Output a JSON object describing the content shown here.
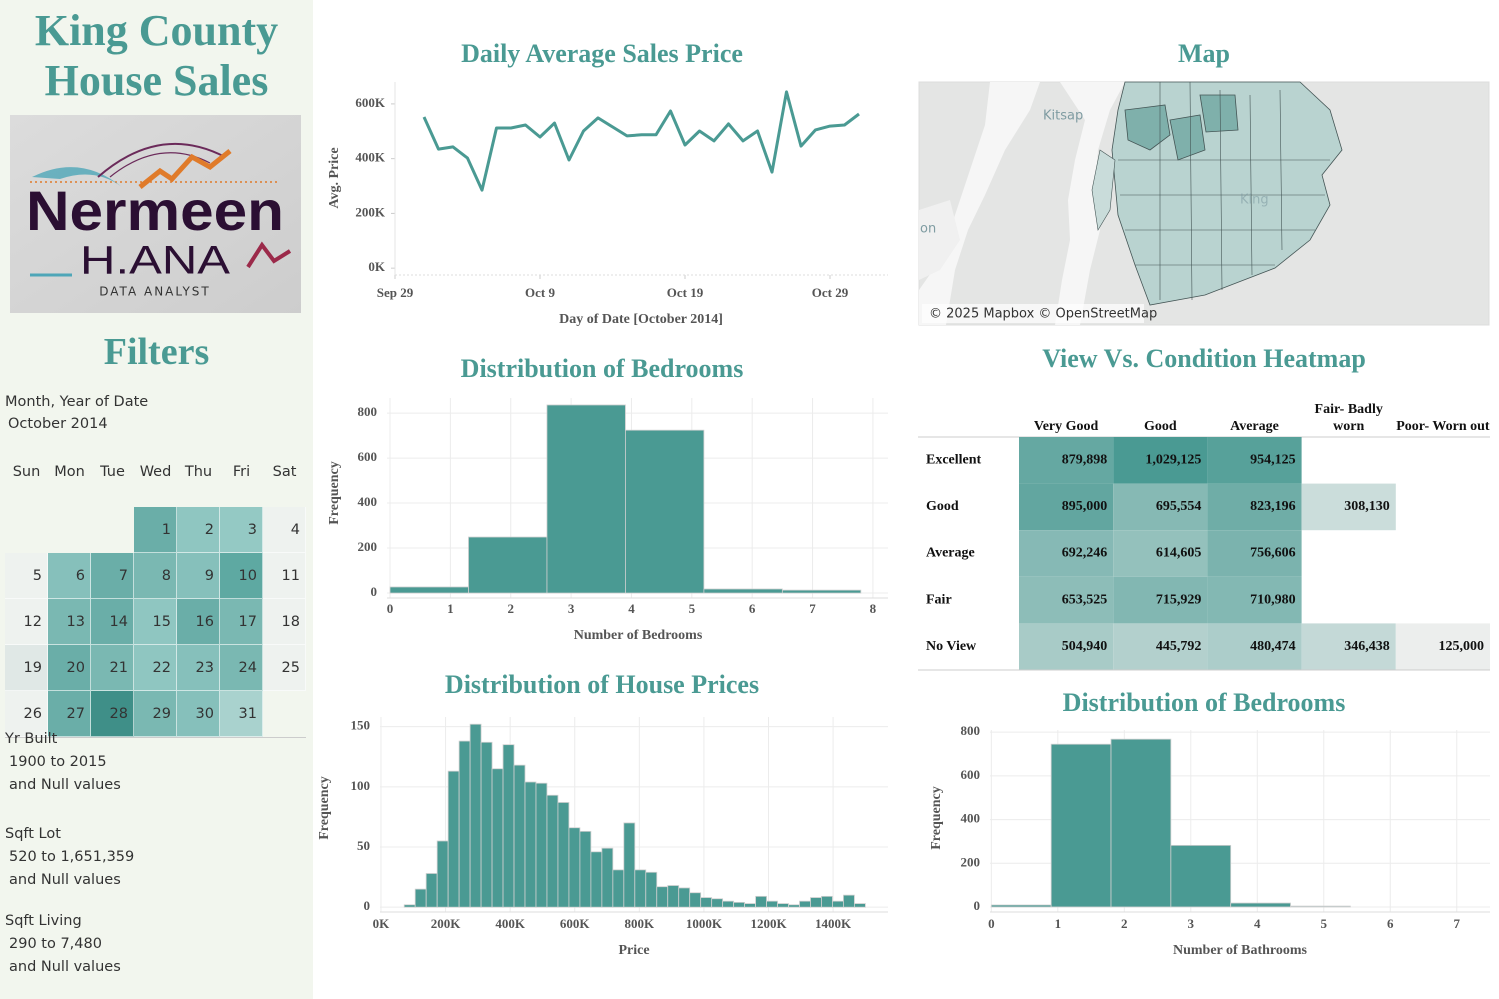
{
  "sidebar": {
    "title": "King County House Sales",
    "logo": {
      "name": "Nermeen",
      "surname": "H.ANA",
      "tagline": "DATA ANALYST"
    },
    "filters_title": "Filters",
    "date_filter": {
      "label": "Month, Year of Date",
      "value": "October 2014"
    },
    "calendar": {
      "weekdays": [
        "Sun",
        "Mon",
        "Tue",
        "Wed",
        "Thu",
        "Fri",
        "Sat"
      ],
      "weeks": [
        [
          null,
          null,
          null,
          {
            "day": 1,
            "color": "#6aaea8"
          },
          {
            "day": 2,
            "color": "#8fc6c1"
          },
          {
            "day": 3,
            "color": "#94c9c4"
          },
          {
            "day": 4,
            "color": "#eef2ef"
          }
        ],
        [
          {
            "day": 5,
            "color": "#eef2ef"
          },
          {
            "day": 6,
            "color": "#86c0bb"
          },
          {
            "day": 7,
            "color": "#6aaea8"
          },
          {
            "day": 8,
            "color": "#7ab8b2"
          },
          {
            "day": 9,
            "color": "#86c0bb"
          },
          {
            "day": 10,
            "color": "#5ea9a2"
          },
          {
            "day": 11,
            "color": "#eef2ef"
          }
        ],
        [
          {
            "day": 12,
            "color": "#eef2ef"
          },
          {
            "day": 13,
            "color": "#7ab8b2"
          },
          {
            "day": 14,
            "color": "#6aaea8"
          },
          {
            "day": 15,
            "color": "#8fc6c1"
          },
          {
            "day": 16,
            "color": "#6aaea8"
          },
          {
            "day": 17,
            "color": "#7ab8b2"
          },
          {
            "day": 18,
            "color": "#eef2ef"
          }
        ],
        [
          {
            "day": 19,
            "color": "#e0e8e6"
          },
          {
            "day": 20,
            "color": "#6aaea8"
          },
          {
            "day": 21,
            "color": "#7ab8b2"
          },
          {
            "day": 22,
            "color": "#8fc6c1"
          },
          {
            "day": 23,
            "color": "#86c0bb"
          },
          {
            "day": 24,
            "color": "#7ab8b2"
          },
          {
            "day": 25,
            "color": "#eef2ef"
          }
        ],
        [
          {
            "day": 26,
            "color": "#eef2ef"
          },
          {
            "day": 27,
            "color": "#6aaea8"
          },
          {
            "day": 28,
            "color": "#3f8f88"
          },
          {
            "day": 29,
            "color": "#7ab8b2"
          },
          {
            "day": 30,
            "color": "#86c0bb"
          },
          {
            "day": 31,
            "color": "#a9d2ce"
          },
          null
        ]
      ]
    },
    "range_filters": [
      {
        "label": "Yr Built",
        "range": "1900 to 2015",
        "note": "and Null values"
      },
      {
        "label": "Sqft Lot",
        "range": "520 to 1,651,359",
        "note": "and Null values"
      },
      {
        "label": "Sqft Living",
        "range": "290 to 7,480",
        "note": "and Null values"
      }
    ]
  },
  "map": {
    "title": "Map",
    "labels": [
      "Kitsap",
      "King",
      "on"
    ],
    "credit": "© 2025 Mapbox © OpenStreetMap"
  },
  "chart_data": [
    {
      "type": "line",
      "title": "Daily Average Sales Price",
      "x_label": "Day of Date [October 2014]",
      "y_label": "Avg. Price",
      "x": [
        "2014-10-01",
        "2014-10-02",
        "2014-10-03",
        "2014-10-04",
        "2014-10-05",
        "2014-10-06",
        "2014-10-07",
        "2014-10-08",
        "2014-10-09",
        "2014-10-10",
        "2014-10-11",
        "2014-10-12",
        "2014-10-13",
        "2014-10-14",
        "2014-10-15",
        "2014-10-16",
        "2014-10-17",
        "2014-10-18",
        "2014-10-19",
        "2014-10-20",
        "2014-10-21",
        "2014-10-22",
        "2014-10-23",
        "2014-10-24",
        "2014-10-25",
        "2014-10-26",
        "2014-10-27",
        "2014-10-28",
        "2014-10-29",
        "2014-10-30",
        "2014-10-31"
      ],
      "values": [
        552000,
        435000,
        443000,
        402000,
        285000,
        512000,
        512000,
        523000,
        479000,
        530000,
        395000,
        501000,
        549000,
        516000,
        483000,
        487000,
        487000,
        574000,
        450000,
        501000,
        465000,
        527000,
        465000,
        501000,
        351000,
        644000,
        446000,
        505000,
        519000,
        523000,
        563000
      ],
      "color": "#4a9a93",
      "xlim": [
        "2014-09-29",
        "2014-11-02"
      ],
      "xticks": [
        {
          "value": "2014-09-29",
          "label": "Sep 29"
        },
        {
          "value": "2014-10-09",
          "label": "Oct 9"
        },
        {
          "value": "2014-10-19",
          "label": "Oct 19"
        },
        {
          "value": "2014-10-29",
          "label": "Oct 29"
        }
      ],
      "ylim": [
        -25000,
        680000
      ],
      "yticks": [
        {
          "value": 0,
          "label": "0K"
        },
        {
          "value": 200000,
          "label": "200K"
        },
        {
          "value": 400000,
          "label": "400K"
        },
        {
          "value": 600000,
          "label": "600K"
        }
      ],
      "grid": false
    },
    {
      "type": "histogram",
      "title": "Distribution of Bedrooms",
      "x_label": "Number of Bedrooms",
      "y_label": "Frequency",
      "bins": [
        0,
        1.3,
        2.6,
        3.9,
        5.2,
        6.5,
        7.8
      ],
      "values": [
        27,
        249,
        836,
        724,
        18,
        13
      ],
      "color": "#4a9a93",
      "xlim": [
        -0.05,
        8.25
      ],
      "xticks": [
        0,
        1,
        2,
        3,
        4,
        5,
        6,
        7,
        8
      ],
      "ylim": [
        -22,
        867
      ],
      "yticks": [
        0,
        200,
        400,
        600,
        800
      ],
      "grid": true
    },
    {
      "type": "histogram",
      "title": "Distribution of House Prices",
      "x_label": "Price",
      "y_label": "Frequency",
      "bins": [
        72000,
        106000,
        140000,
        174000,
        208000,
        242000,
        276000,
        310000,
        344000,
        378000,
        412000,
        446000,
        480000,
        514000,
        548000,
        582000,
        616000,
        650000,
        684000,
        718000,
        752000,
        786000,
        820000,
        854000,
        888000,
        922000,
        956000,
        990000,
        1024000,
        1058000,
        1092000,
        1126000,
        1160000,
        1194000,
        1228000,
        1262000,
        1296000,
        1330000,
        1364000,
        1398000,
        1432000,
        1466000,
        1500000
      ],
      "values": [
        2,
        15,
        28,
        55,
        113,
        138,
        152,
        137,
        115,
        135,
        118,
        104,
        103,
        93,
        87,
        66,
        63,
        46,
        49,
        31,
        70,
        31,
        29,
        17,
        18,
        16,
        12,
        8,
        7,
        5,
        4,
        3,
        9,
        5,
        3,
        2,
        5,
        8,
        9,
        5,
        10,
        3
      ],
      "color": "#4a9a93",
      "xlim": [
        -3000,
        1570000
      ],
      "xticks": [
        {
          "value": 0,
          "label": "0K"
        },
        {
          "value": 200000,
          "label": "200K"
        },
        {
          "value": 400000,
          "label": "400K"
        },
        {
          "value": 600000,
          "label": "600K"
        },
        {
          "value": 800000,
          "label": "800K"
        },
        {
          "value": 1000000,
          "label": "1000K"
        },
        {
          "value": 1200000,
          "label": "1200K"
        },
        {
          "value": 1400000,
          "label": "1400K"
        }
      ],
      "ylim": [
        -4,
        158
      ],
      "yticks": [
        0,
        50,
        100,
        150
      ],
      "grid": true
    },
    {
      "type": "heatmap",
      "title": "View Vs. Condition Heatmap",
      "columns": [
        "Very Good",
        "Good",
        "Average",
        "Fair- Badly worn",
        "Poor- Worn out"
      ],
      "rows": [
        "Excellent",
        "Good",
        "Average",
        "Fair",
        "No View"
      ],
      "values": [
        [
          879898,
          1029125,
          954125,
          null,
          null
        ],
        [
          895000,
          695554,
          823196,
          308130,
          null
        ],
        [
          692246,
          614605,
          756606,
          null,
          null
        ],
        [
          653525,
          715929,
          710980,
          null,
          null
        ],
        [
          504940,
          445792,
          480474,
          346438,
          125000
        ]
      ],
      "value_labels": [
        [
          "879,898",
          "1,029,125",
          "954,125",
          null,
          null
        ],
        [
          "895,000",
          "695,554",
          "823,196",
          "308,130",
          null
        ],
        [
          "692,246",
          "614,605",
          "756,606",
          null,
          null
        ],
        [
          "653,525",
          "715,929",
          "710,980",
          null,
          null
        ],
        [
          "504,940",
          "445,792",
          "480,474",
          "346,438",
          "125,000"
        ]
      ],
      "color_scale": [
        "#eceeed",
        "#4a9a93"
      ]
    },
    {
      "type": "histogram",
      "title": "Distribution of Bedrooms",
      "x_label": "Number of Bathrooms",
      "y_label": "Frequency",
      "bins": [
        0,
        0.9,
        1.8,
        2.7,
        3.6,
        4.5,
        5.4
      ],
      "values": [
        9,
        745,
        768,
        282,
        18,
        4
      ],
      "color": "#4a9a93",
      "xlim": [
        -0.02,
        7.5
      ],
      "xticks": [
        0,
        1,
        2,
        3,
        4,
        5,
        6,
        7
      ],
      "ylim": [
        -23,
        810
      ],
      "yticks": [
        0,
        200,
        400,
        600,
        800
      ],
      "grid": true
    }
  ]
}
